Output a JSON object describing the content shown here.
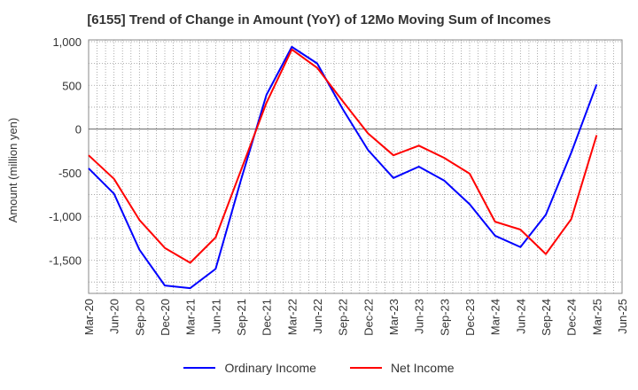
{
  "chart_data": {
    "type": "line",
    "title": "[6155]  Trend of Change in Amount (YoY) of 12Mo Moving Sum of Incomes",
    "xlabel": "",
    "ylabel": "Amount (million yen)",
    "ylim": [
      -1880,
      1020
    ],
    "yticks": [
      1000,
      500,
      0,
      -500,
      -1000,
      -1500
    ],
    "ytick_labels": [
      "1,000",
      "500",
      "0",
      "-500",
      "-1,000",
      "-1,500"
    ],
    "categories": [
      "Mar-20",
      "Jun-20",
      "Sep-20",
      "Dec-20",
      "Mar-21",
      "Jun-21",
      "Sep-21",
      "Dec-21",
      "Mar-22",
      "Jun-22",
      "Sep-22",
      "Dec-22",
      "Mar-23",
      "Jun-23",
      "Sep-23",
      "Dec-23",
      "Mar-24",
      "Jun-24",
      "Sep-24",
      "Dec-24",
      "Mar-25",
      "Jun-25"
    ],
    "grid": true,
    "legend_position": "bottom",
    "series": [
      {
        "name": "Ordinary Income",
        "color": "#0000ff",
        "values": [
          -450,
          -740,
          -1380,
          -1790,
          -1820,
          -1600,
          -580,
          390,
          940,
          750,
          230,
          -240,
          -560,
          -430,
          -590,
          -860,
          -1220,
          -1350,
          -980,
          -270,
          510,
          null
        ]
      },
      {
        "name": "Net Income",
        "color": "#ff0000",
        "values": [
          -300,
          -570,
          -1040,
          -1360,
          -1530,
          -1240,
          -470,
          300,
          910,
          700,
          320,
          -50,
          -300,
          -190,
          -330,
          -510,
          -1060,
          -1150,
          -1430,
          -1030,
          -70,
          null
        ]
      }
    ]
  }
}
